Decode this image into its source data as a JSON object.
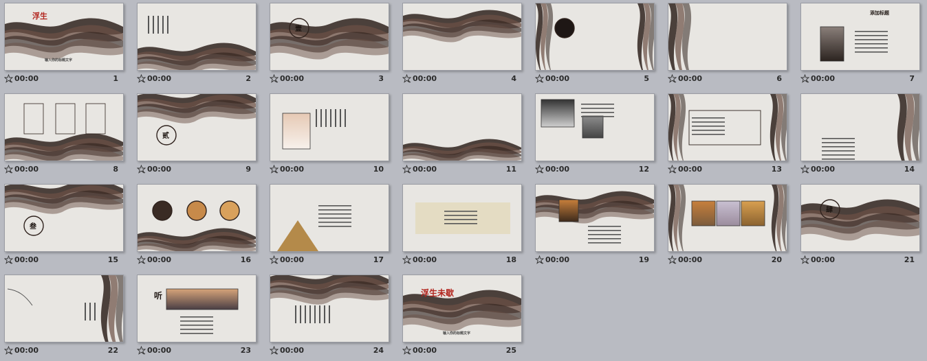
{
  "slides": [
    {
      "number": "1",
      "time": "00:00",
      "title": "浮生",
      "caption": "输入你的标题文字",
      "style": "ink-bottom"
    },
    {
      "number": "2",
      "time": "00:00",
      "title": "",
      "caption": "",
      "style": "text-columns"
    },
    {
      "number": "3",
      "time": "00:00",
      "title": "壹",
      "caption": "",
      "style": "ink-bottom-circle"
    },
    {
      "number": "4",
      "time": "00:00",
      "title": "",
      "caption": "",
      "style": "ink-band"
    },
    {
      "number": "5",
      "time": "00:00",
      "title": "",
      "caption": "",
      "style": "ink-sides-circle"
    },
    {
      "number": "6",
      "time": "00:00",
      "title": "",
      "caption": "",
      "style": "ink-left-frame"
    },
    {
      "number": "7",
      "time": "00:00",
      "title": "添加标题",
      "caption": "",
      "style": "photo-frame-left"
    },
    {
      "number": "8",
      "time": "00:00",
      "title": "",
      "caption": "",
      "style": "three-frames"
    },
    {
      "number": "9",
      "time": "00:00",
      "title": "贰",
      "caption": "",
      "style": "ink-top-circle"
    },
    {
      "number": "10",
      "time": "00:00",
      "title": "",
      "caption": "",
      "style": "photo-left-text"
    },
    {
      "number": "11",
      "time": "00:00",
      "title": "",
      "caption": "",
      "style": "ink-corner-branch"
    },
    {
      "number": "12",
      "time": "00:00",
      "title": "",
      "caption": "",
      "style": "photos-text"
    },
    {
      "number": "13",
      "time": "00:00",
      "title": "",
      "caption": "",
      "style": "frame-crane"
    },
    {
      "number": "14",
      "time": "00:00",
      "title": "",
      "caption": "",
      "style": "ink-right-jelly"
    },
    {
      "number": "15",
      "time": "00:00",
      "title": "叁",
      "caption": "",
      "style": "ink-top-circle"
    },
    {
      "number": "16",
      "time": "00:00",
      "title": "",
      "caption": "",
      "style": "three-circles"
    },
    {
      "number": "17",
      "time": "00:00",
      "title": "",
      "caption": "",
      "style": "mountain-text"
    },
    {
      "number": "18",
      "time": "00:00",
      "title": "",
      "caption": "",
      "style": "banner-bird"
    },
    {
      "number": "19",
      "time": "00:00",
      "title": "",
      "caption": "",
      "style": "ink-band-photo"
    },
    {
      "number": "20",
      "time": "00:00",
      "title": "",
      "caption": "",
      "style": "three-photos"
    },
    {
      "number": "21",
      "time": "00:00",
      "title": "肆",
      "caption": "",
      "style": "ink-bottom-circle"
    },
    {
      "number": "22",
      "time": "00:00",
      "title": "",
      "caption": "",
      "style": "branch-ink-right"
    },
    {
      "number": "23",
      "time": "00:00",
      "title": "听",
      "caption": "",
      "style": "photo-banner"
    },
    {
      "number": "24",
      "time": "00:00",
      "title": "",
      "caption": "",
      "style": "ink-top-text"
    },
    {
      "number": "25",
      "time": "00:00",
      "title": "浮生未歇",
      "caption": "输入你的标题文字",
      "style": "ink-bottom-end"
    }
  ],
  "colors": {
    "background": "#b9bbc2",
    "slide": "#e8e6e2",
    "ink": "#3b2a24",
    "accent": "#b2241d"
  }
}
